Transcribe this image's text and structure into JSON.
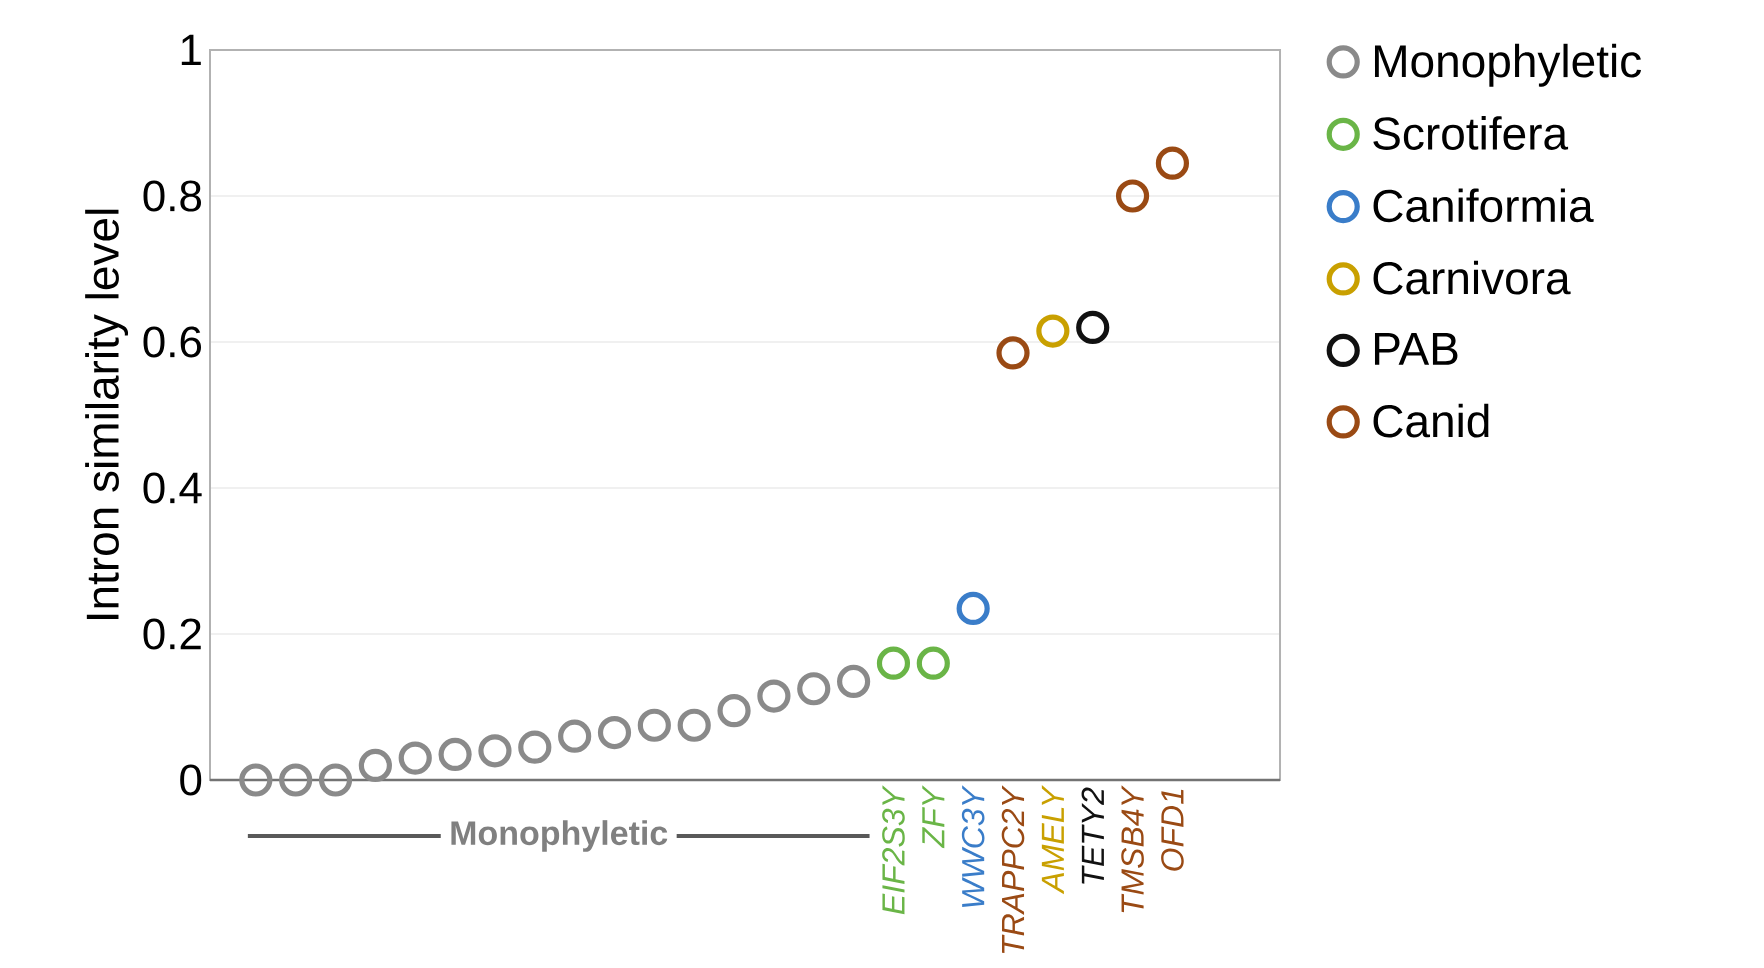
{
  "chart_data": {
    "type": "scatter",
    "ylabel": "Intron similarity level",
    "categories": [
      null,
      null,
      null,
      null,
      null,
      null,
      null,
      null,
      null,
      null,
      null,
      null,
      null,
      null,
      null,
      null,
      "EIF2S3Y",
      "ZFY",
      "WWC3Y",
      "TRAPPC2Y",
      "AMELY",
      "TETY2",
      "TMSB4Y",
      "OFD1"
    ],
    "series": [
      {
        "name": "Monophyletic",
        "color": "#8a8a8a",
        "values": [
          0,
          0,
          0,
          0.02,
          0.03,
          0.035,
          0.04,
          0.045,
          0.06,
          0.065,
          0.075,
          0.075,
          0.095,
          0.115,
          0.125,
          0.135,
          null,
          null,
          null,
          null,
          null,
          null,
          null,
          null
        ]
      },
      {
        "name": "Scrotifera",
        "color": "#6ab547",
        "values": [
          null,
          null,
          null,
          null,
          null,
          null,
          null,
          null,
          null,
          null,
          null,
          null,
          null,
          null,
          null,
          null,
          0.16,
          0.16,
          null,
          null,
          null,
          null,
          null,
          null
        ]
      },
      {
        "name": "Caniformia",
        "color": "#3a7dc9",
        "values": [
          null,
          null,
          null,
          null,
          null,
          null,
          null,
          null,
          null,
          null,
          null,
          null,
          null,
          null,
          null,
          null,
          null,
          null,
          0.235,
          null,
          null,
          null,
          null,
          null
        ]
      },
      {
        "name": "Carnivora",
        "color": "#c9a000",
        "values": [
          null,
          null,
          null,
          null,
          null,
          null,
          null,
          null,
          null,
          null,
          null,
          null,
          null,
          null,
          null,
          null,
          null,
          null,
          null,
          null,
          0.615,
          null,
          null,
          null
        ]
      },
      {
        "name": "PAB",
        "color": "#111111",
        "values": [
          null,
          null,
          null,
          null,
          null,
          null,
          null,
          null,
          null,
          null,
          null,
          null,
          null,
          null,
          null,
          null,
          null,
          null,
          null,
          null,
          null,
          0.62,
          null,
          null
        ]
      },
      {
        "name": "Canid",
        "color": "#9a4a14",
        "values": [
          null,
          null,
          null,
          null,
          null,
          null,
          null,
          null,
          null,
          null,
          null,
          null,
          null,
          null,
          null,
          null,
          null,
          null,
          null,
          0.585,
          null,
          null,
          0.8,
          0.845
        ]
      }
    ],
    "annotations": [
      "Monophyletic"
    ],
    "ylim": [
      0,
      1
    ],
    "yticks": [
      0,
      0.2,
      0.4,
      0.6,
      0.8,
      1
    ],
    "grid": "y",
    "legend": "right",
    "marker": "circle"
  }
}
